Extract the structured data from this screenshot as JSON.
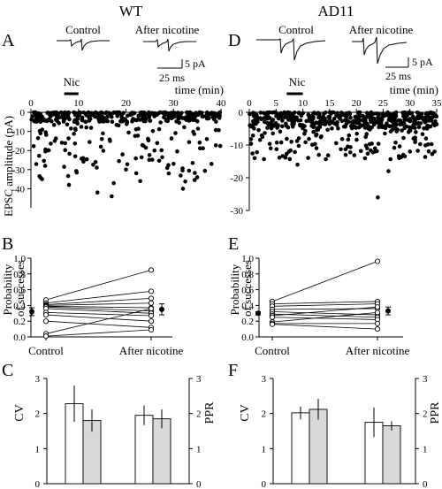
{
  "column_titles": {
    "left": "WT",
    "right": "AD11"
  },
  "panel_letters": {
    "A": "A",
    "B": "B",
    "C": "C",
    "D": "D",
    "E": "E",
    "F": "F"
  },
  "traces": {
    "control": "Control",
    "after": "After nicotine",
    "scale_pa": "5 pA",
    "scale_ms": "25 ms"
  },
  "time_label": "time (min)",
  "nic_label": "Nic",
  "y_label_epsc": "EPSC amplitude (pA)",
  "y_label_prob": "Probability of successes",
  "y_label_cv": "CV",
  "y_label_ppr": "PPR",
  "chart_data": [
    {
      "id": "A",
      "type": "scatter",
      "title": "WT",
      "xlabel": "time (min)",
      "ylabel": "EPSC amplitude (pA)",
      "xlim": [
        0,
        40
      ],
      "ylim": [
        -50,
        0
      ],
      "xticks": [
        0,
        10,
        20,
        30,
        40
      ],
      "yticks": [
        0,
        -10,
        -20,
        -30,
        -40
      ],
      "nicotine_application": [
        7,
        10
      ],
      "n_events": 420,
      "typical_amplitude_range": [
        -50,
        0
      ],
      "points_sample": [
        [
          2,
          -5
        ],
        [
          3,
          -28
        ],
        [
          5,
          -15
        ],
        [
          8,
          -38
        ],
        [
          11,
          -24
        ],
        [
          14,
          -42
        ],
        [
          17,
          -44
        ],
        [
          20,
          -30
        ],
        [
          23,
          -36
        ],
        [
          26,
          -20
        ],
        [
          29,
          -32
        ],
        [
          32,
          -40
        ],
        [
          35,
          -34
        ],
        [
          38,
          -27
        ]
      ]
    },
    {
      "id": "D",
      "type": "scatter",
      "title": "AD11",
      "xlabel": "time (min)",
      "ylabel": "EPSC amplitude (pA)",
      "xlim": [
        0,
        35
      ],
      "ylim": [
        -30,
        0
      ],
      "xticks": [
        0,
        5,
        10,
        15,
        20,
        25,
        30,
        35
      ],
      "yticks": [
        0,
        -10,
        -20,
        -30
      ],
      "nicotine_application": [
        7,
        10
      ],
      "n_events": 520,
      "typical_amplitude_range": [
        -16,
        0
      ],
      "points_sample": [
        [
          1,
          -14
        ],
        [
          4,
          -11
        ],
        [
          9,
          -16
        ],
        [
          13,
          -13
        ],
        [
          18,
          -13
        ],
        [
          22,
          -11
        ],
        [
          24,
          -26
        ],
        [
          26,
          -18
        ],
        [
          28,
          -14
        ],
        [
          30,
          -12
        ],
        [
          33,
          -8
        ]
      ]
    },
    {
      "id": "B",
      "type": "scatter",
      "title": "WT",
      "categories": [
        "Control",
        "After nicotine"
      ],
      "ylabel": "Probability of successes",
      "ylim": [
        0,
        1
      ],
      "yticks": [
        0,
        0.2,
        0.4,
        0.6,
        0.8,
        1.0
      ],
      "pairs": [
        [
          0.47,
          0.85
        ],
        [
          0.43,
          0.58
        ],
        [
          0.41,
          0.49
        ],
        [
          0.4,
          0.43
        ],
        [
          0.39,
          0.37
        ],
        [
          0.38,
          0.33
        ],
        [
          0.36,
          0.3
        ],
        [
          0.31,
          0.27
        ],
        [
          0.28,
          0.2
        ],
        [
          0.2,
          0.12
        ],
        [
          0.04,
          0.36
        ],
        [
          0.01,
          0.09
        ]
      ],
      "mean": {
        "control": 0.32,
        "after": 0.35
      },
      "sem": {
        "control": 0.05,
        "after": 0.07
      }
    },
    {
      "id": "E",
      "type": "scatter",
      "title": "AD11",
      "categories": [
        "Control",
        "After nicotine"
      ],
      "ylabel": "Probability of successes",
      "ylim": [
        0,
        1
      ],
      "yticks": [
        0,
        0.2,
        0.4,
        0.6,
        0.8,
        1.0
      ],
      "pairs": [
        [
          0.45,
          0.96
        ],
        [
          0.42,
          0.45
        ],
        [
          0.39,
          0.42
        ],
        [
          0.35,
          0.36
        ],
        [
          0.32,
          0.28
        ],
        [
          0.29,
          0.25
        ],
        [
          0.27,
          0.38
        ],
        [
          0.25,
          0.22
        ],
        [
          0.19,
          0.31
        ],
        [
          0.17,
          0.17
        ],
        [
          0.16,
          0.1
        ]
      ],
      "mean": {
        "control": 0.3,
        "after": 0.33
      },
      "sem": {
        "control": 0.02,
        "after": 0.05
      }
    },
    {
      "id": "C",
      "type": "bar",
      "title": "WT",
      "categories": [
        "Control",
        "After nicotine"
      ],
      "series": [
        {
          "values": [
            2.28,
            1.95
          ],
          "errors": [
            0.52,
            0.28
          ],
          "fill": "#ffffff"
        },
        {
          "values": [
            1.8,
            1.85
          ],
          "errors": [
            0.32,
            0.27
          ],
          "fill": "#d9d9d9"
        }
      ],
      "ylabel_left": "CV",
      "ylabel_right": "PPR",
      "ylim": [
        0,
        3
      ],
      "yticks": [
        0,
        1,
        2,
        3
      ]
    },
    {
      "id": "F",
      "type": "bar",
      "title": "AD11",
      "categories": [
        "Control",
        "After nicotine"
      ],
      "series": [
        {
          "values": [
            2.02,
            1.75
          ],
          "errors": [
            0.18,
            0.42
          ],
          "fill": "#ffffff"
        },
        {
          "values": [
            2.12,
            1.65
          ],
          "errors": [
            0.3,
            0.13
          ],
          "fill": "#d9d9d9"
        }
      ],
      "ylabel_left": "CV",
      "ylabel_right": "PPR",
      "ylim": [
        0,
        3
      ],
      "yticks": [
        0,
        1,
        2,
        3
      ]
    }
  ]
}
